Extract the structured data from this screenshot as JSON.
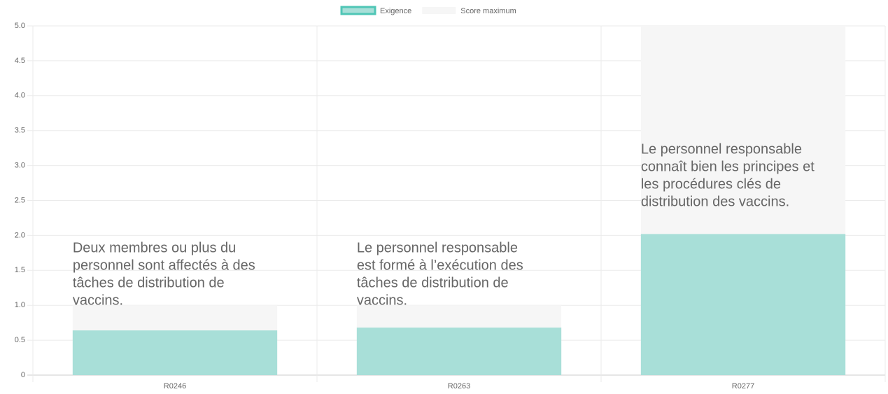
{
  "chart_data": {
    "type": "bar",
    "categories": [
      "R0246",
      "R0263",
      "R0277"
    ],
    "series": [
      {
        "name": "Exigence",
        "color": "#a8dfd8",
        "border": "#4fc6b6",
        "values": [
          0.64,
          0.68,
          2.02
        ]
      },
      {
        "name": "Score maximum",
        "color": "#f6f6f6",
        "values": [
          1,
          1,
          5
        ]
      }
    ],
    "ylim": [
      0,
      5
    ],
    "yticks": [
      0,
      0.5,
      {
        "value": 1,
        "label": "1.0"
      },
      1.5,
      {
        "value": 2,
        "label": "2.0"
      },
      2.5,
      {
        "value": 3,
        "label": "3.0"
      },
      3.5,
      {
        "value": 4,
        "label": "4.0"
      },
      4.5,
      {
        "value": 5,
        "label": "5.0"
      }
    ],
    "grid": true,
    "legend": "top",
    "annotations": [
      [
        "Deux membres ou plus du",
        "personnel sont affectés à des",
        "tâches de distribution de",
        "vaccins."
      ],
      [
        "Le personnel responsable",
        "est formé à l’exécution des",
        "tâches de distribution de",
        "vaccins."
      ],
      [
        "Le personnel responsable",
        "connaît bien les principes et",
        "les procédures clés de",
        "distribution des vaccins."
      ]
    ]
  }
}
